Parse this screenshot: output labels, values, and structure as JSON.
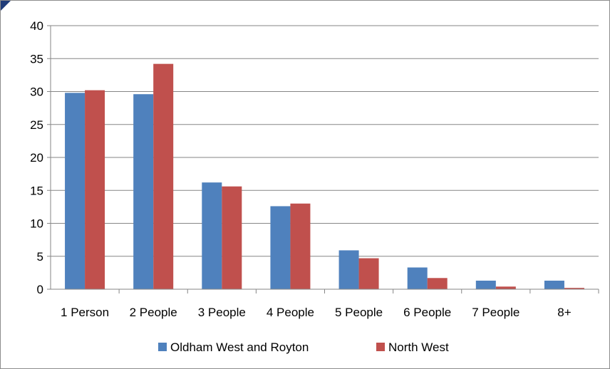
{
  "chart_data": {
    "type": "bar",
    "categories": [
      "1 Person",
      "2 People",
      "3 People",
      "4 People",
      "5 People",
      "6 People",
      "7 People",
      "8+"
    ],
    "series": [
      {
        "name": "Oldham West and Royton",
        "color": "#4f81bd",
        "values": [
          29.8,
          29.6,
          16.2,
          12.6,
          5.9,
          3.3,
          1.3,
          1.3
        ]
      },
      {
        "name": "North West",
        "color": "#c0504d",
        "values": [
          30.2,
          34.2,
          15.6,
          13.0,
          4.7,
          1.7,
          0.4,
          0.2
        ]
      }
    ],
    "yticks": [
      0,
      5,
      10,
      15,
      20,
      25,
      30,
      35,
      40
    ],
    "ylim": [
      0,
      40
    ],
    "grid": true,
    "legend_position": "bottom"
  }
}
